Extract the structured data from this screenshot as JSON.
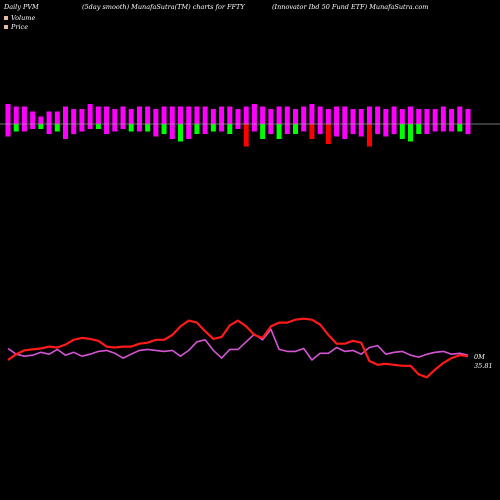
{
  "header": {
    "left": "Daily PVM",
    "middle": "(5day smooth) MunafaSutra(TM) charts for FFTY",
    "right": "(Innovator Ibd 50  Fund ETF) MunafaSutra.com"
  },
  "legend": {
    "volume_label": "Volume",
    "price_label": "Price",
    "volume_color": "#e2bba0",
    "price_color": "#e2bba0"
  },
  "colors": {
    "background": "#000000",
    "pvm_up": "#ff00ff",
    "pvm_down": "#ff0000",
    "pvm_green": "#00ff00",
    "volume_line": "#d355d3",
    "price_line": "#ff1a1a",
    "zero_line": "#9a9a9a"
  },
  "chart_data": {
    "type": "line",
    "count": 57,
    "volume_label_text": "0M",
    "price_label_text": "35.81",
    "volume_line_y": [
      62,
      56,
      54,
      55,
      58,
      56,
      61,
      55,
      58,
      54,
      56,
      59,
      60,
      57,
      52,
      56,
      60,
      61,
      60,
      59,
      60,
      54,
      60,
      69,
      71,
      60,
      52,
      61,
      61,
      69,
      77,
      71,
      82,
      61,
      59,
      59,
      62,
      50,
      57,
      57,
      63,
      59,
      60,
      56,
      63,
      65,
      56,
      58,
      59,
      55,
      53,
      56,
      58,
      59,
      56,
      57,
      55
    ],
    "price_line_y": [
      50,
      56,
      60,
      61,
      62,
      64,
      63,
      66,
      71,
      73,
      72,
      70,
      64,
      63,
      64,
      64,
      67,
      68,
      71,
      71,
      76,
      85,
      91,
      89,
      80,
      72,
      74,
      86,
      91,
      85,
      76,
      73,
      85,
      89,
      89,
      92,
      93,
      92,
      87,
      76,
      67,
      67,
      70,
      68,
      49,
      45,
      46,
      45,
      44,
      44,
      35,
      32,
      40,
      47,
      52,
      55,
      54
    ],
    "pvm_bars": [
      {
        "top": 4.0,
        "bottom": 2.5,
        "color": "magenta"
      },
      {
        "top": 3.5,
        "bottom": 1.5,
        "color": "green"
      },
      {
        "top": 3.5,
        "bottom": 1.5,
        "color": "magenta"
      },
      {
        "top": 2.5,
        "bottom": 1.0,
        "color": "magenta"
      },
      {
        "top": 1.5,
        "bottom": 1.0,
        "color": "green"
      },
      {
        "top": 2.5,
        "bottom": 2.0,
        "color": "magenta"
      },
      {
        "top": 2.5,
        "bottom": 1.5,
        "color": "green"
      },
      {
        "top": 3.5,
        "bottom": 3.0,
        "color": "magenta"
      },
      {
        "top": 3.0,
        "bottom": 2.0,
        "color": "magenta"
      },
      {
        "top": 3.0,
        "bottom": 1.5,
        "color": "magenta"
      },
      {
        "top": 4.0,
        "bottom": 1.0,
        "color": "magenta"
      },
      {
        "top": 3.5,
        "bottom": 1.0,
        "color": "green"
      },
      {
        "top": 3.5,
        "bottom": 2.0,
        "color": "magenta"
      },
      {
        "top": 3.0,
        "bottom": 1.5,
        "color": "magenta"
      },
      {
        "top": 3.5,
        "bottom": 1.0,
        "color": "magenta"
      },
      {
        "top": 3.0,
        "bottom": 1.5,
        "color": "green"
      },
      {
        "top": 3.5,
        "bottom": 1.5,
        "color": "magenta"
      },
      {
        "top": 3.5,
        "bottom": 1.5,
        "color": "green"
      },
      {
        "top": 3.0,
        "bottom": 2.5,
        "color": "magenta"
      },
      {
        "top": 3.5,
        "bottom": 2.0,
        "color": "green"
      },
      {
        "top": 3.5,
        "bottom": 3.0,
        "color": "magenta"
      },
      {
        "top": 3.5,
        "bottom": 3.5,
        "color": "green"
      },
      {
        "top": 3.5,
        "bottom": 3.0,
        "color": "magenta"
      },
      {
        "top": 3.5,
        "bottom": 2.0,
        "color": "green"
      },
      {
        "top": 3.5,
        "bottom": 2.0,
        "color": "magenta"
      },
      {
        "top": 3.0,
        "bottom": 1.5,
        "color": "green"
      },
      {
        "top": 3.5,
        "bottom": 1.5,
        "color": "magenta"
      },
      {
        "top": 3.5,
        "bottom": 2.0,
        "color": "green"
      },
      {
        "top": 3.0,
        "bottom": 1.0,
        "color": "magenta"
      },
      {
        "top": 3.5,
        "bottom": 4.5,
        "color": "red"
      },
      {
        "top": 4.0,
        "bottom": 1.5,
        "color": "magenta"
      },
      {
        "top": 3.5,
        "bottom": 3.0,
        "color": "green"
      },
      {
        "top": 3.0,
        "bottom": 2.0,
        "color": "magenta"
      },
      {
        "top": 3.5,
        "bottom": 3.0,
        "color": "green"
      },
      {
        "top": 3.5,
        "bottom": 2.0,
        "color": "magenta"
      },
      {
        "top": 3.0,
        "bottom": 2.0,
        "color": "green"
      },
      {
        "top": 3.5,
        "bottom": 1.5,
        "color": "magenta"
      },
      {
        "top": 4.0,
        "bottom": 3.0,
        "color": "red"
      },
      {
        "top": 3.5,
        "bottom": 2.0,
        "color": "magenta"
      },
      {
        "top": 3.0,
        "bottom": 4.0,
        "color": "red"
      },
      {
        "top": 3.5,
        "bottom": 2.5,
        "color": "magenta"
      },
      {
        "top": 3.5,
        "bottom": 3.0,
        "color": "magenta"
      },
      {
        "top": 3.0,
        "bottom": 2.0,
        "color": "magenta"
      },
      {
        "top": 3.0,
        "bottom": 2.5,
        "color": "magenta"
      },
      {
        "top": 3.5,
        "bottom": 4.5,
        "color": "red"
      },
      {
        "top": 3.5,
        "bottom": 2.0,
        "color": "magenta"
      },
      {
        "top": 3.0,
        "bottom": 2.5,
        "color": "magenta"
      },
      {
        "top": 3.5,
        "bottom": 2.0,
        "color": "magenta"
      },
      {
        "top": 3.0,
        "bottom": 3.0,
        "color": "green"
      },
      {
        "top": 3.5,
        "bottom": 3.5,
        "color": "green"
      },
      {
        "top": 3.0,
        "bottom": 2.0,
        "color": "green"
      },
      {
        "top": 3.0,
        "bottom": 2.0,
        "color": "magenta"
      },
      {
        "top": 3.0,
        "bottom": 1.5,
        "color": "magenta"
      },
      {
        "top": 3.5,
        "bottom": 1.5,
        "color": "magenta"
      },
      {
        "top": 3.0,
        "bottom": 1.5,
        "color": "magenta"
      },
      {
        "top": 3.5,
        "bottom": 1.5,
        "color": "green"
      },
      {
        "top": 3.0,
        "bottom": 2.0,
        "color": "magenta"
      }
    ]
  }
}
